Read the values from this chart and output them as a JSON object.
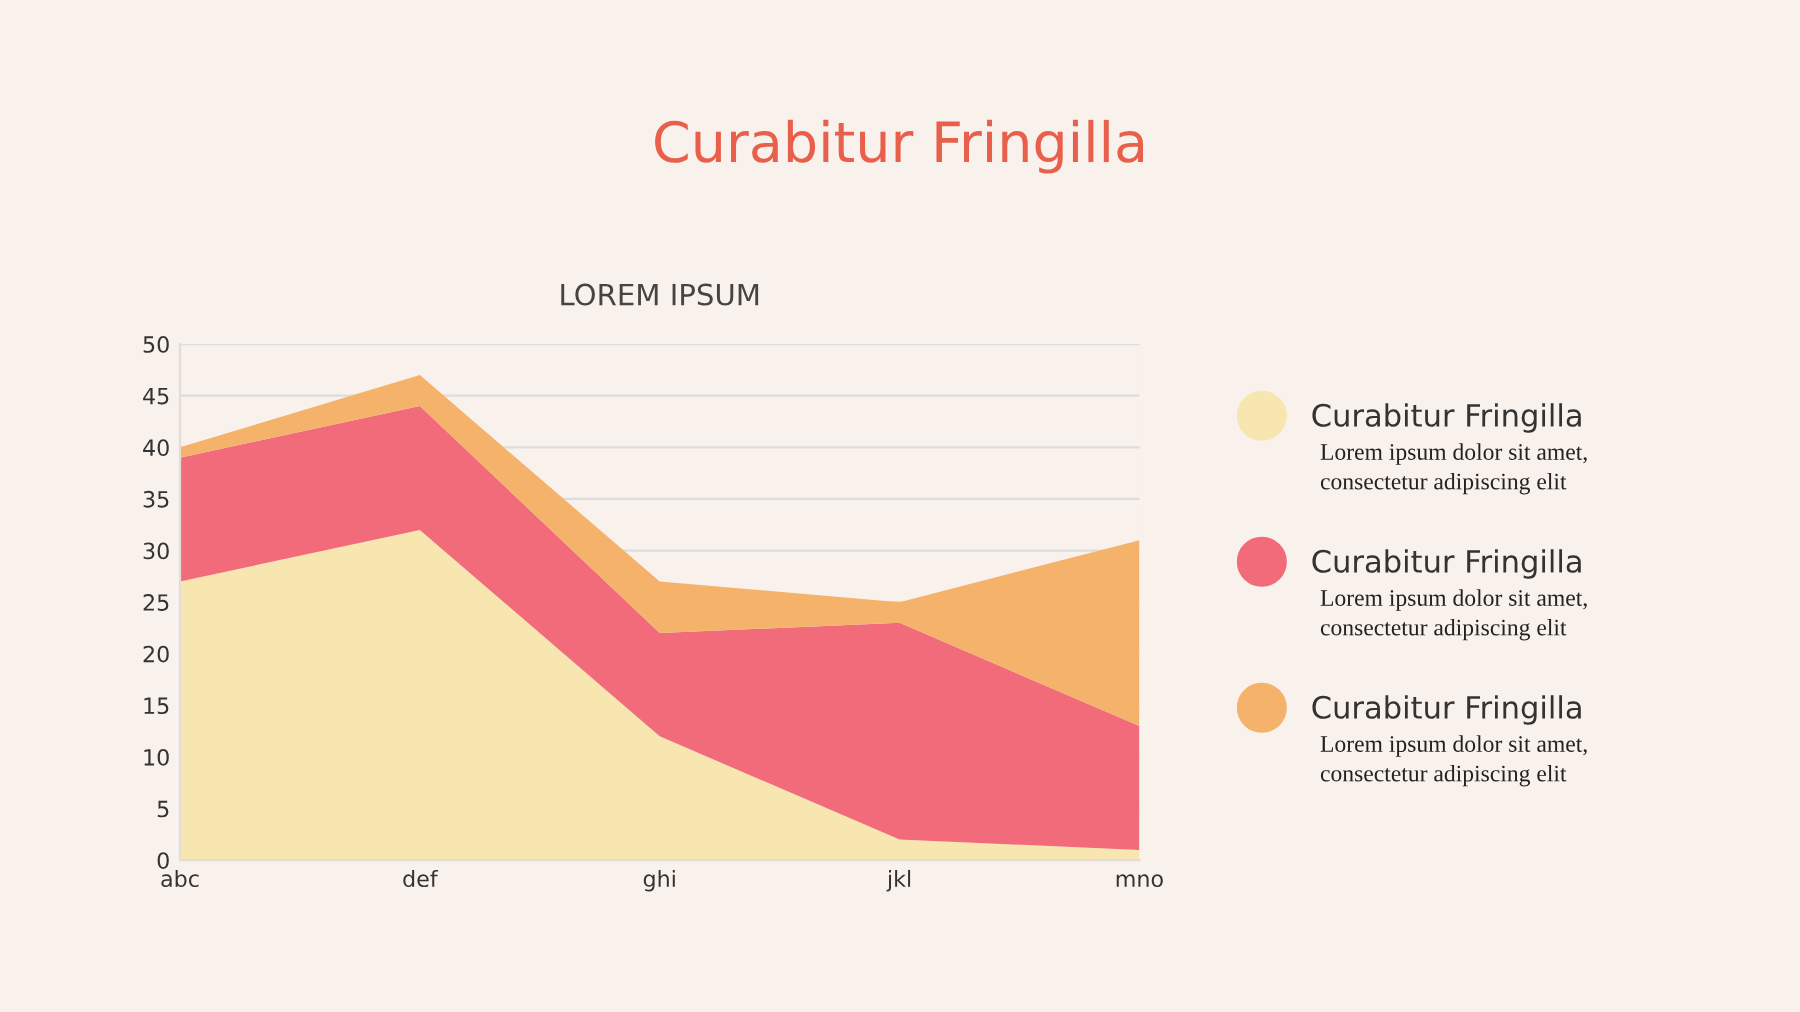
{
  "chart_data": {
    "type": "area",
    "title": "Curabitur Fringilla",
    "subtitle": "LOREM IPSUM",
    "categories": [
      "abc",
      "def",
      "ghi",
      "jkl",
      "mno"
    ],
    "stacked": true,
    "series": [
      {
        "name": "Curabitur Fringilla",
        "color": "#f8e6b0",
        "values": [
          27,
          32,
          12,
          2,
          1
        ]
      },
      {
        "name": "Curabitur Fringilla",
        "color": "#f26b7a",
        "values": [
          12,
          12,
          10,
          21,
          12
        ]
      },
      {
        "name": "Curabitur Fringilla",
        "color": "#f5b26b",
        "values": [
          1,
          3,
          5,
          2,
          18
        ]
      }
    ],
    "annotations": [
      "Lorem ipsum dolor sit amet,\nconsectetur adipiscing elit",
      "Lorem ipsum dolor sit amet,\nconsectetur adipiscing elit",
      "Lorem ipsum dolor sit amet,\nconsectetur adipiscing elit"
    ],
    "ylim": [
      0,
      50
    ],
    "yticks": [
      0,
      5,
      10,
      15,
      20,
      25,
      30,
      35,
      40,
      45,
      50
    ],
    "grid": "y",
    "legend": "right"
  }
}
